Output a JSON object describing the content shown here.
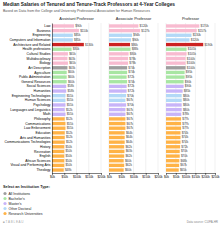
{
  "chart_data": {
    "type": "bar",
    "orientation": "horizontal",
    "title": "Median Salaries of Tenured and Tenure-Track Professors at 4-Year Colleges",
    "subtitle": "Based on Data from the College and University Professional Association for Human Resources",
    "categories": [
      "Law",
      "Business",
      "Engineering",
      "Computers and Information",
      "Architecture and Related",
      "Health professions",
      "Cultural Studies",
      "Multidisciplinary",
      "Biology",
      "Art Description",
      "Agriculture",
      "Public Administration",
      "General Resources",
      "Social Sciences",
      "Humanities",
      "Engineering Technologies",
      "Human Sciences",
      "Psychology",
      "Languages and Linguistics",
      "Math",
      "Philosophy",
      "Communications",
      "Law Enforcement",
      "Education",
      "Arts and Humanities",
      "Communications Technologies",
      "History",
      "Recreation",
      "English",
      "African Sciences",
      "Visual and Performing Arts",
      "Theology"
    ],
    "colors": [
      "#f8bbd0",
      "#f8bbd0",
      "#b3d9f7",
      "#b3d9f7",
      "#cc2222",
      "#a8e6a3",
      "#f8bbd0",
      "#f8bbd0",
      "#f8bbd0",
      "#9e9e9e",
      "#a8e6a3",
      "#a8e6a3",
      "#a8e6a3",
      "#c8b4f8",
      "#c8b4f8",
      "#b3d9f7",
      "#b3d9f7",
      "#c8b4f8",
      "#c8b4f8",
      "#c8b4f8",
      "#ffb347",
      "#ffb347",
      "#ffb347",
      "#ffb347",
      "#ffb347",
      "#ffb347",
      "#ffb347",
      "#ffb347",
      "#ffb347",
      "#ffb347",
      "#ffb347",
      "#ffb347"
    ],
    "data_labels": true,
    "grid": true,
    "series": [
      {
        "name": "Assistant Professor",
        "values": [
          90,
          110,
          85,
          85,
          130,
          80,
          65,
          63,
          65,
          63,
          60,
          60,
          60,
          58,
          58,
          55,
          55,
          55,
          52,
          55,
          52,
          55,
          55,
          52,
          52,
          52,
          50,
          50,
          50,
          50,
          50,
          48
        ],
        "value_labels": [
          "$90k",
          "$110k",
          "$85k",
          "$85k",
          "$130k",
          "$80k",
          "$65k",
          "$63k",
          "$65k",
          "$63k",
          "$60k",
          "$60k",
          "$60k",
          "$58k",
          "$58k",
          "$55k",
          "$55k",
          "$55k",
          "$52k",
          "$55k",
          "$52k",
          "$55k",
          "$55k",
          "$52k",
          "$52k",
          "$52k",
          "$50k",
          "$50k",
          "$50k",
          "$50k",
          "$50k",
          "$48k"
        ],
        "xlim": [
          0,
          200
        ],
        "xticks": [
          {
            "value": 0,
            "label": "$0k"
          },
          {
            "value": 50,
            "label": "$50k"
          },
          {
            "value": 100,
            "label": "$100k"
          },
          {
            "value": 150,
            "label": "$150k"
          },
          {
            "value": 200,
            "label": "$200k"
          }
        ]
      },
      {
        "name": "Associate Professor",
        "values": [
          120,
          127,
          94,
          90,
          86,
          88,
          80,
          78,
          78,
          74,
          74,
          72,
          74,
          72,
          72,
          70,
          67,
          70,
          67,
          67,
          67,
          67,
          67,
          64,
          64,
          64,
          62,
          63,
          62,
          60,
          62,
          60
        ],
        "value_labels": [
          "$120k",
          "$127k",
          "$94k",
          "$90k",
          "$86k",
          "$88k",
          "$80k",
          "$78k",
          "$78k",
          "$74k",
          "$74k",
          "$72k",
          "$74k",
          "$72k",
          "$72k",
          "$70k",
          "$67k",
          "$70k",
          "$67k",
          "$67k",
          "$67k",
          "$67k",
          "$67k",
          "$64k",
          "$64k",
          "$64k",
          "$62k",
          "$63k",
          "$62k",
          "$60k",
          "$62k",
          "$60k"
        ],
        "xlim": [
          0,
          200
        ],
        "xticks": [
          {
            "value": 0,
            "label": "$0k"
          },
          {
            "value": 50,
            "label": "$50k"
          },
          {
            "value": 100,
            "label": "$100k"
          },
          {
            "value": 150,
            "label": "$150k"
          },
          {
            "value": 200,
            "label": "$200k"
          }
        ]
      },
      {
        "name": "Professor",
        "values": [
          170,
          157,
          130,
          120,
          190,
          105,
          105,
          100,
          100,
          100,
          95,
          95,
          90,
          90,
          85,
          80,
          80,
          80,
          80,
          78,
          77,
          77,
          77,
          74,
          74,
          74,
          72,
          70,
          70,
          68,
          67,
          65
        ],
        "value_labels": [
          "$170k",
          "$157k",
          "$130k",
          "$120k",
          "$190k",
          "$105k",
          "$105k",
          "$100k",
          "$100k",
          "$100k",
          "$95k",
          "$95k",
          "$90k",
          "$90k",
          "$85k",
          "$80k",
          "$80k",
          "$80k",
          "$80k",
          "$78k",
          "$77k",
          "$77k",
          "$77k",
          "$74k",
          "$74k",
          "$74k",
          "$72k",
          "$70k",
          "$70k",
          "$68k",
          "$67k",
          "$65k"
        ],
        "xlim": [
          0,
          250
        ],
        "xticks": [
          {
            "value": 0,
            "label": "$0k"
          },
          {
            "value": 50,
            "label": "$50k"
          },
          {
            "value": 100,
            "label": "$100k"
          },
          {
            "value": 150,
            "label": "$150k"
          },
          {
            "value": 200,
            "label": "$200k"
          },
          {
            "value": 250,
            "label": "$250k"
          }
        ]
      }
    ],
    "legend_title": "Select an Institution Type:",
    "legend_entries": [
      {
        "name": "All Institutions",
        "color": "#9e9e9e"
      },
      {
        "name": "Bachelor's",
        "color": "#a8e6a3"
      },
      {
        "name": "Master's",
        "color": "#c8b4f8"
      },
      {
        "name": "Other Doctoral",
        "color": "#b3d9f7"
      },
      {
        "name": "Research Universities",
        "color": "#ffb347"
      }
    ],
    "annotations": [
      "Data source: CUPA-HR",
      "■ T A B L E A U"
    ]
  }
}
